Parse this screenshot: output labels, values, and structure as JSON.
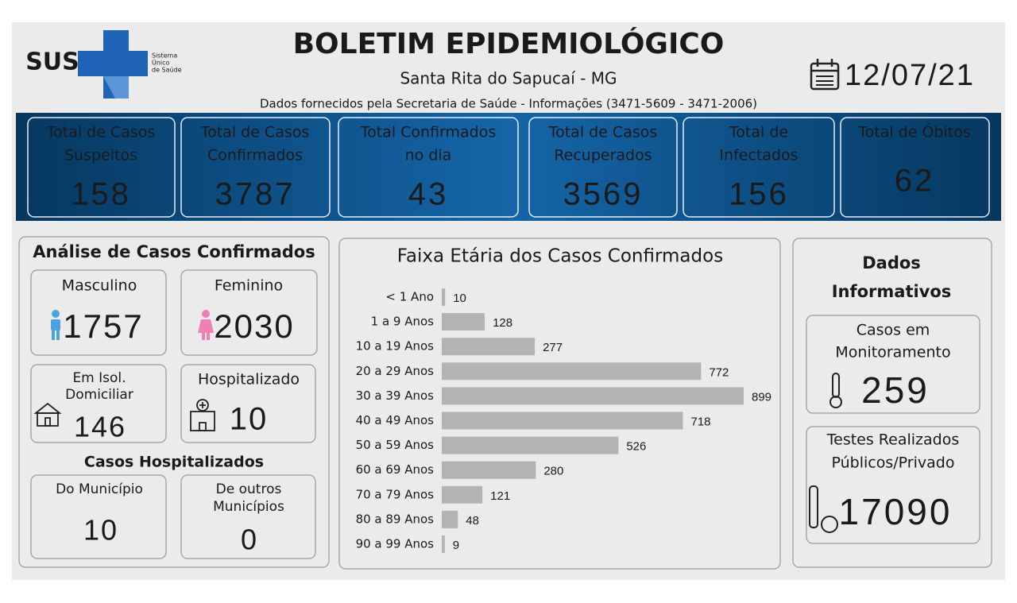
{
  "header": {
    "logo": {
      "name": "SUS",
      "text": [
        "Sistema",
        "Único",
        "de Saúde"
      ]
    },
    "title": "BOLETIM EPIDEMIOLÓGICO",
    "subtitle": "Santa Rita do Sapucaí - MG",
    "source": "Dados fornecidos pela Secretaria de Saúde - Informações (3471-5609 - 3471-2006)",
    "date": "12/07/21"
  },
  "summary": [
    {
      "label": [
        "Total de Casos",
        "Suspeitos"
      ],
      "value": 158
    },
    {
      "label": [
        "Total de Casos",
        "Confirmados"
      ],
      "value": 3787
    },
    {
      "label": [
        "Total Confirmados",
        "no dia"
      ],
      "value": 43
    },
    {
      "label": [
        "Total de Casos",
        "Recuperados"
      ],
      "value": 3569
    },
    {
      "label": [
        "Total de",
        "Infectados"
      ],
      "value": 156
    },
    {
      "label": [
        "Total de Óbitos"
      ],
      "value": 62
    }
  ],
  "analysis": {
    "title": "Análise de Casos Confirmados",
    "gender": [
      {
        "label": "Masculino",
        "value": 1757
      },
      {
        "label": "Feminino",
        "value": 2030
      }
    ],
    "isolation": {
      "label": [
        "Em Isol.",
        "Domiciliar"
      ],
      "value": 146
    },
    "hospitalized": {
      "label": "Hospitalizado",
      "value": 10
    },
    "hospital_title": "Casos Hospitalizados",
    "hospital": [
      {
        "label": [
          "Do Município"
        ],
        "value": 10
      },
      {
        "label": [
          "De outros",
          "Municípios"
        ],
        "value": 0
      }
    ]
  },
  "chart_data": {
    "type": "bar",
    "orientation": "horizontal",
    "title": "Faixa Etária dos Casos Confirmados",
    "categories": [
      "< 1 Ano",
      "1 a 9 Anos",
      "10 a 19 Anos",
      "20 a 29 Anos",
      "30 a 39 Anos",
      "40 a 49 Anos",
      "50 a 59 Anos",
      "60 a 69 Anos",
      "70 a 79 Anos",
      "80 a 89 Anos",
      "90 a 99 Anos"
    ],
    "values": [
      10,
      128,
      277,
      772,
      899,
      718,
      526,
      280,
      121,
      48,
      9
    ],
    "color": "#b3b3b3"
  },
  "info": {
    "title": [
      "Dados",
      "Informativos"
    ],
    "monitoring": {
      "label": [
        "Casos em",
        "Monitoramento"
      ],
      "value": 259
    },
    "tests": {
      "label": [
        "Testes Realizados",
        "Públicos/Privado"
      ],
      "value": 17090
    }
  }
}
